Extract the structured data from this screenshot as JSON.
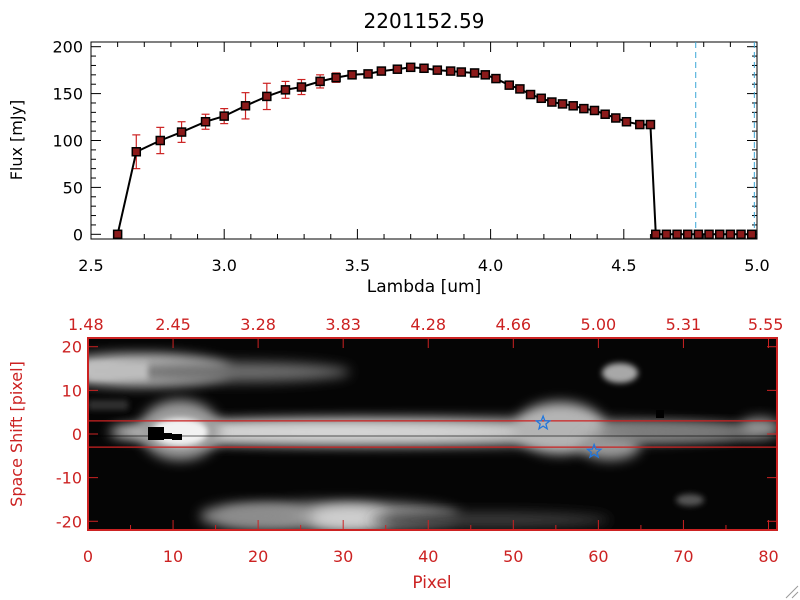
{
  "colors": {
    "axis": "#000000",
    "image_axis": "#cc2222",
    "error_bar": "#cc2222",
    "marker": "#000000",
    "marker_fill": "#8b1a1a",
    "line": "#000000",
    "cutoff_line": "#3aa6d8",
    "extraction_line": "#cc2222",
    "star": "#2277dd"
  },
  "chart_data": [
    {
      "type": "line",
      "title": "2201152.59",
      "xlabel": "Lambda [um]",
      "ylabel": "Flux [mJy]",
      "xlim": [
        2.5,
        5.0
      ],
      "ylim": [
        -5,
        205
      ],
      "xticks": [
        "2.5",
        "3.0",
        "3.5",
        "4.0",
        "4.5",
        "5.0"
      ],
      "yticks": [
        "0",
        "50",
        "100",
        "150",
        "200"
      ],
      "grid": false,
      "series": [
        {
          "x": [
            2.6,
            2.67,
            2.76,
            2.84,
            2.93,
            3.0,
            3.08,
            3.16,
            3.23,
            3.29,
            3.36,
            3.42,
            3.48,
            3.54,
            3.59,
            3.65,
            3.7,
            3.75,
            3.8,
            3.85,
            3.89,
            3.94,
            3.98,
            4.02,
            4.07,
            4.11,
            4.15,
            4.19,
            4.23,
            4.27,
            4.31,
            4.35,
            4.39,
            4.43,
            4.47,
            4.51,
            4.56,
            4.6,
            4.62,
            4.66,
            4.7,
            4.74,
            4.78,
            4.82,
            4.86,
            4.9,
            4.94,
            4.98
          ],
          "y": [
            0,
            88,
            100,
            109,
            120,
            126,
            137,
            147,
            154,
            157,
            163,
            167,
            170,
            171,
            174,
            176,
            178,
            177,
            175,
            174,
            173,
            172,
            170,
            166,
            159,
            155,
            149,
            145,
            141,
            139,
            137,
            134,
            132,
            128,
            124,
            120,
            117,
            117,
            0,
            0,
            0,
            0,
            0,
            0,
            0,
            0,
            0,
            0
          ],
          "yerr": [
            0,
            18,
            14,
            11,
            8,
            8,
            14,
            14,
            9,
            8,
            7,
            5,
            3,
            3,
            3,
            3,
            3,
            3,
            3,
            3,
            3,
            3,
            3,
            3,
            3,
            3,
            3,
            3,
            3,
            3,
            3,
            3,
            3,
            3,
            3,
            3,
            3,
            3,
            0,
            0,
            0,
            0,
            0,
            0,
            0,
            0,
            0,
            0
          ]
        }
      ],
      "vertical_lines_x": [
        4.77,
        4.99
      ]
    },
    {
      "type": "heatmap",
      "xlabel": "Pixel",
      "ylabel": "Space Shift [pixel]",
      "xlim": [
        0,
        81
      ],
      "ylim": [
        -22,
        22
      ],
      "xticks": [
        "0",
        "10",
        "20",
        "30",
        "40",
        "50",
        "60",
        "70",
        "80"
      ],
      "yticks": [
        "-20",
        "-10",
        "0",
        "10",
        "20"
      ],
      "top_axis_labels": [
        "1.48",
        "2.45",
        "3.28",
        "3.83",
        "4.28",
        "4.66",
        "5.00",
        "5.31",
        "5.55"
      ],
      "extraction_lines_y": [
        3,
        -3
      ],
      "stars": [
        {
          "x": 53.5,
          "y": 2.5
        },
        {
          "x": 59.5,
          "y": -4
        }
      ]
    }
  ]
}
